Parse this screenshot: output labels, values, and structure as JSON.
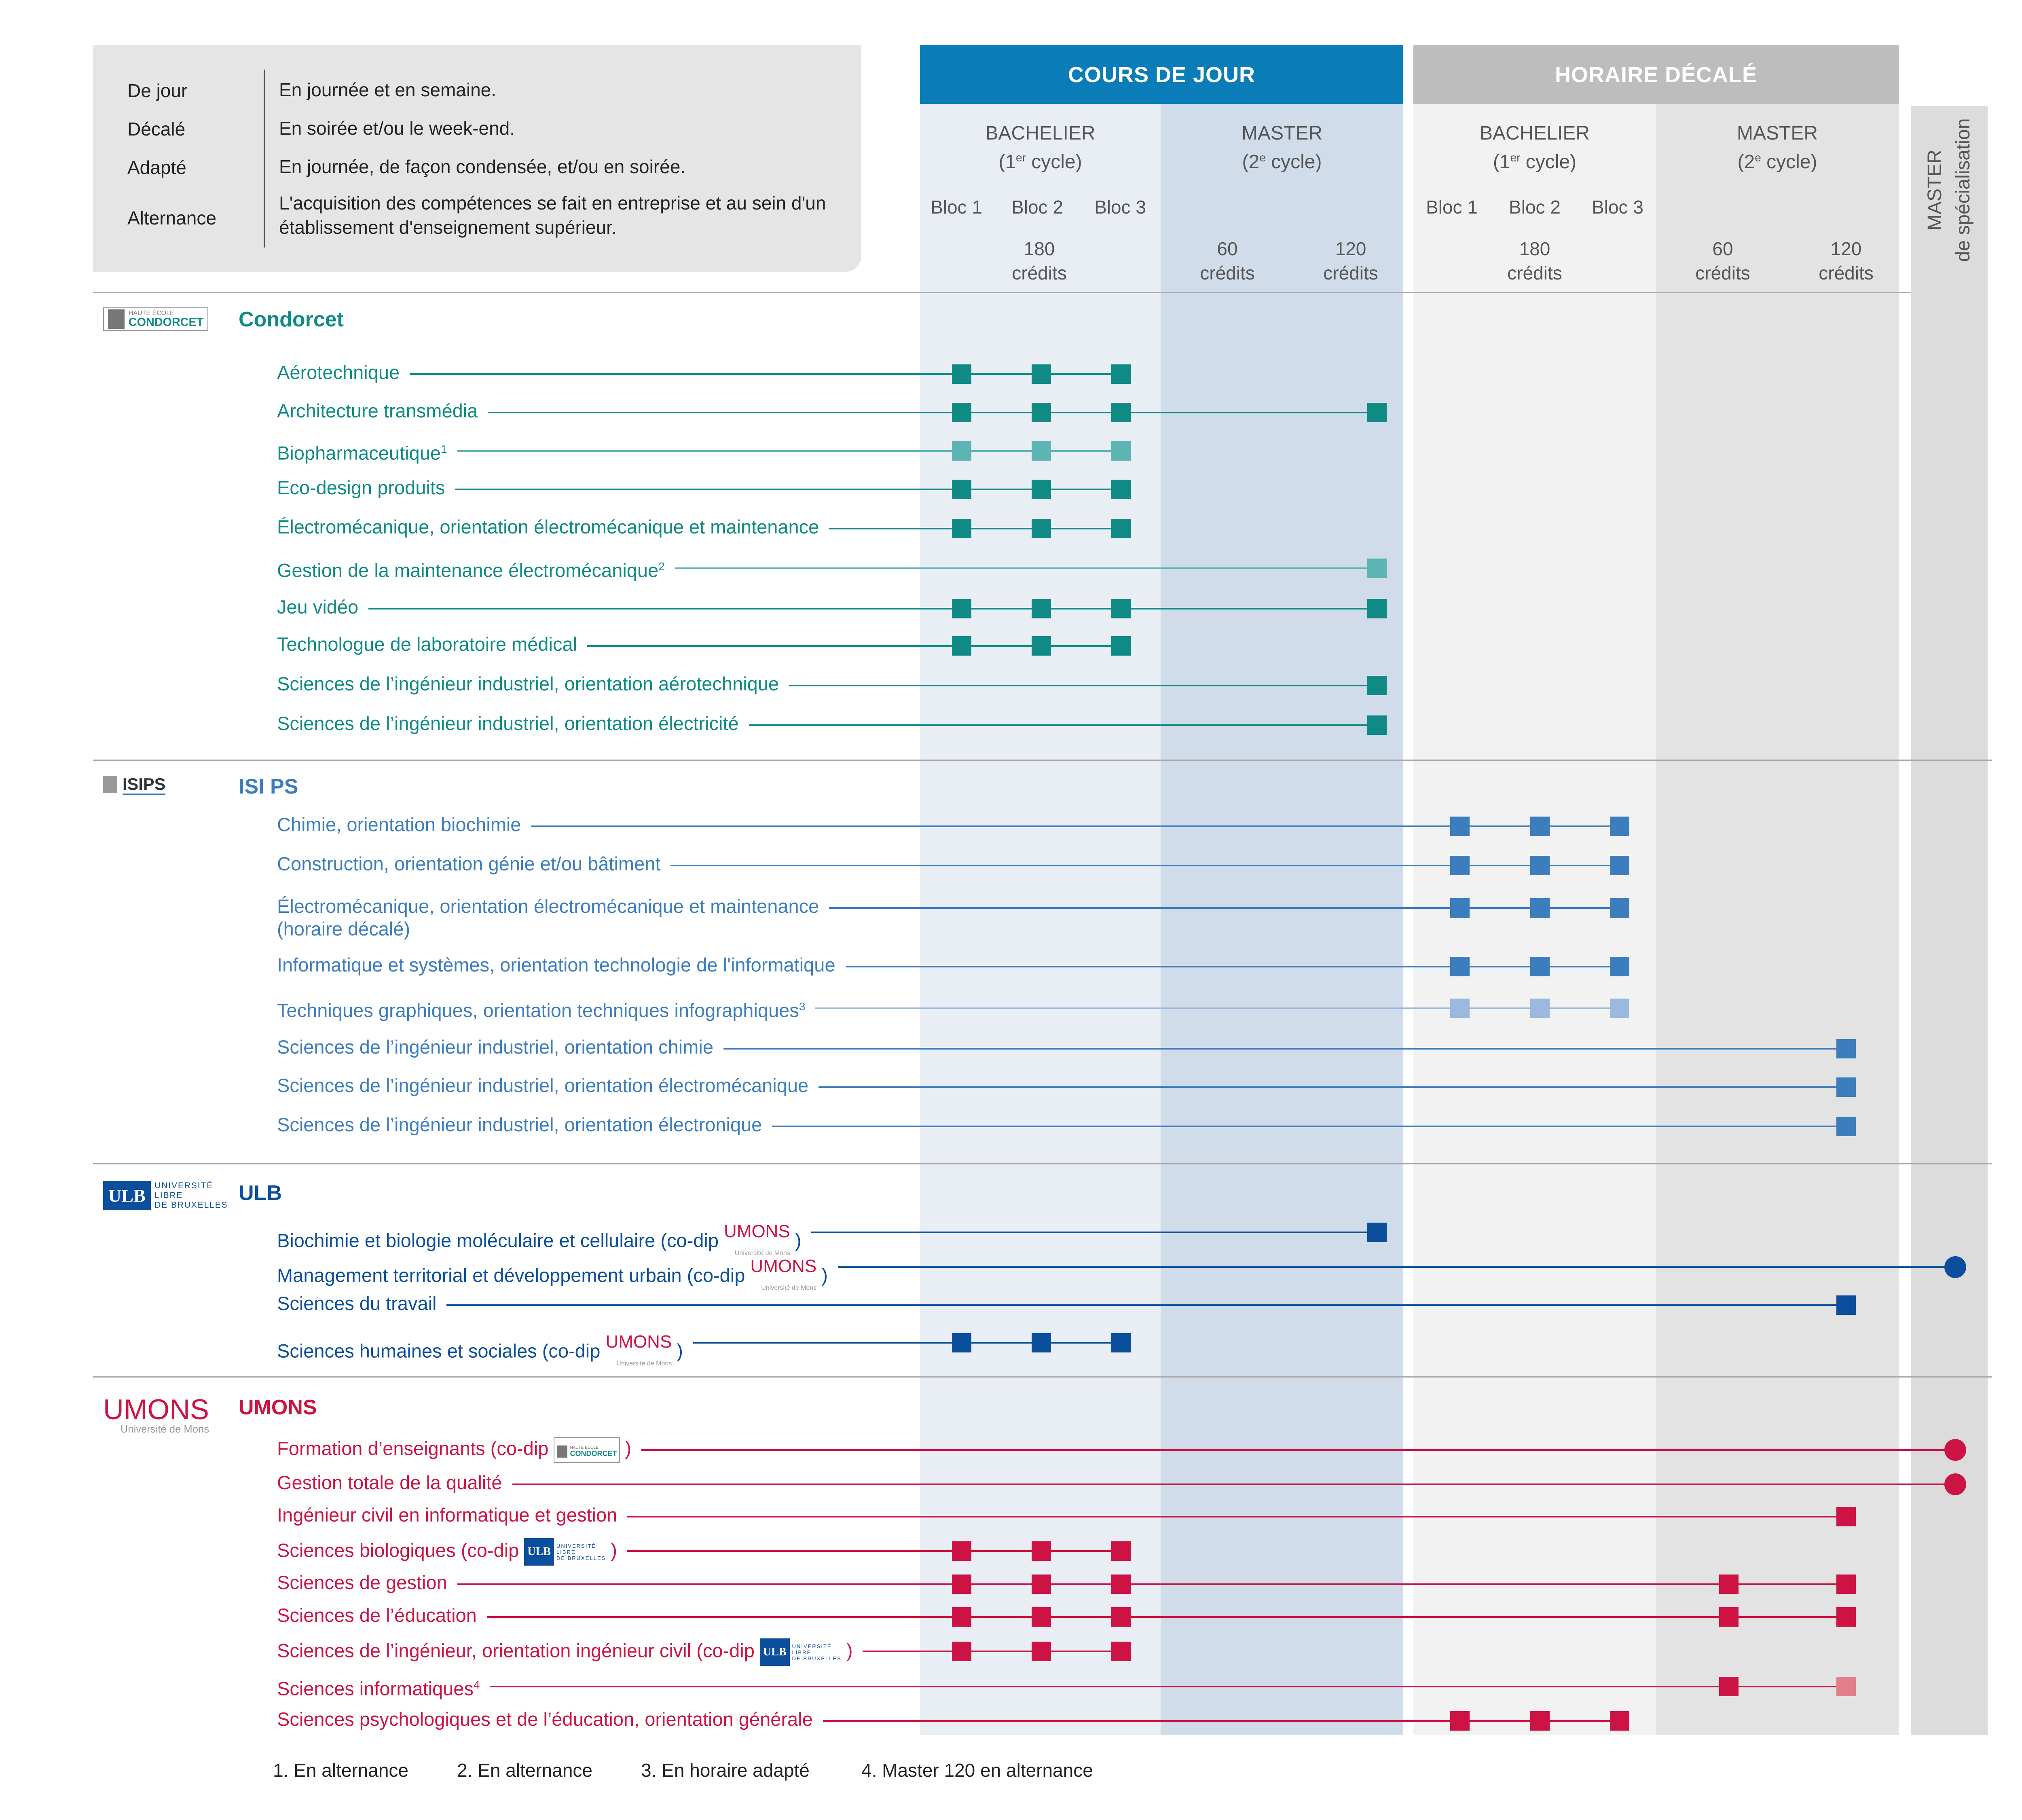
{
  "legend": [
    {
      "key": "De jour",
      "def": "En journée et en semaine."
    },
    {
      "key": "Décalé",
      "def": "En soirée et/ou le week-end."
    },
    {
      "key": "Adapté",
      "def": "En journée, de façon condensée, et/ou en soirée."
    },
    {
      "key": "Alternance",
      "def": "L'acquisition des compétences se fait en entreprise et au sein d'un établissement d'enseignement supérieur."
    }
  ],
  "headers": {
    "jour": "COURS DE JOUR",
    "decale": "HORAIRE DÉCALÉ",
    "bachelier": "BACHELIER",
    "bachelier_cycle_a": "(1",
    "bachelier_cycle_sup": "er",
    "bachelier_cycle_b": " cycle)",
    "master": "MASTER",
    "master_cycle_a": "(2",
    "master_cycle_sup": "e",
    "master_cycle_b": " cycle)",
    "bloc1": "Bloc 1",
    "bloc2": "Bloc 2",
    "bloc3": "Bloc 3",
    "credits180": "180",
    "credits60": "60",
    "credits120": "120",
    "credits_word": "crédits",
    "spec_line1": "MASTER",
    "spec_line2": "de spécialisation"
  },
  "colors": {
    "jour": "#0a7db8",
    "decale": "#bdbdbd",
    "band_light": "#e9eef5",
    "band_mid": "#d1dcea",
    "band_grey1": "#f2f2f2",
    "band_grey2": "#e3e3e3",
    "condorcet": "#0f8a84",
    "condorcet_light": "#5cb5b3",
    "isips": "#3c7dbd",
    "isips_light": "#9bb8de",
    "ulb": "#0b4e9b",
    "umons": "#cc1344",
    "umons_light": "#e27e87"
  },
  "sections": [
    {
      "key": "condorcet",
      "name": "Condorcet",
      "logo": "Condorcet",
      "rows": [
        {
          "label": "Aérotechnique",
          "sup": "",
          "marks": [
            "j1",
            "j2",
            "j3"
          ],
          "end": "",
          "light": false
        },
        {
          "label": "Architecture transmédia",
          "sup": "",
          "marks": [
            "j1",
            "j2",
            "j3",
            "jm120"
          ],
          "end": "",
          "light": false
        },
        {
          "label": "Biopharmaceutique",
          "sup": "1",
          "marks": [
            "j1",
            "j2",
            "j3"
          ],
          "end": "",
          "light": true
        },
        {
          "label": "Eco-design produits",
          "sup": "",
          "marks": [
            "j1",
            "j2",
            "j3"
          ],
          "end": "",
          "light": false
        },
        {
          "label": "Électromécanique, orientation électromécanique et maintenance",
          "sup": "",
          "marks": [
            "j1",
            "j2",
            "j3"
          ],
          "end": "",
          "light": false
        },
        {
          "label": "Gestion de la maintenance électromécanique",
          "sup": "2",
          "marks": [
            "jm120"
          ],
          "end": "",
          "light": true
        },
        {
          "label": "Jeu vidéo",
          "sup": "",
          "marks": [
            "j1",
            "j2",
            "j3",
            "jm120"
          ],
          "end": "",
          "light": false
        },
        {
          "label": "Technologue de laboratoire médical",
          "sup": "",
          "marks": [
            "j1",
            "j2",
            "j3"
          ],
          "end": "",
          "light": false
        },
        {
          "label": "Sciences de l’ingénieur industriel, orientation aérotechnique",
          "sup": "",
          "marks": [
            "jm120"
          ],
          "end": "",
          "light": false
        },
        {
          "label": "Sciences de l’ingénieur industriel, orientation électricité",
          "sup": "",
          "marks": [
            "jm120"
          ],
          "end": "",
          "light": false
        }
      ]
    },
    {
      "key": "isips",
      "name": "ISI PS",
      "logo": "ISIPS",
      "rows": [
        {
          "label": "Chimie, orientation biochimie",
          "sup": "",
          "marks": [
            "d1",
            "d2",
            "d3"
          ],
          "light": false
        },
        {
          "label": "Construction, orientation génie et/ou bâtiment",
          "sup": "",
          "marks": [
            "d1",
            "d2",
            "d3"
          ],
          "light": false
        },
        {
          "label": "Électromécanique, orientation électromécanique et maintenance",
          "label2": "(horaire décalé)",
          "sup": "",
          "marks": [
            "d1",
            "d2",
            "d3"
          ],
          "light": false
        },
        {
          "label": "Informatique et systèmes, orientation technologie de l'informatique",
          "sup": "",
          "marks": [
            "d1",
            "d2",
            "d3"
          ],
          "light": false
        },
        {
          "label": "Techniques graphiques, orientation techniques infographiques",
          "sup": "3",
          "marks": [
            "d1",
            "d2",
            "d3"
          ],
          "light": true
        },
        {
          "label": "Sciences de l’ingénieur industriel, orientation chimie",
          "sup": "",
          "marks": [
            "dm120"
          ],
          "light": false
        },
        {
          "label": "Sciences de l’ingénieur industriel, orientation électromécanique",
          "sup": "",
          "marks": [
            "dm120"
          ],
          "light": false
        },
        {
          "label": "Sciences de l’ingénieur industriel, orientation électronique",
          "sup": "",
          "marks": [
            "dm120"
          ],
          "light": false
        }
      ]
    },
    {
      "key": "ulb",
      "name": "ULB",
      "logo": "ULB",
      "rows": [
        {
          "label": "Biochimie et biologie moléculaire et cellulaire (co-dip ",
          "codip": "UMONS",
          "sup": "",
          "marks": [
            "jm120"
          ],
          "light": false
        },
        {
          "label": "Management territorial et développement urbain (co-dip ",
          "codip": "UMONS",
          "sup": "",
          "marks": [
            "spec"
          ],
          "light": false
        },
        {
          "label": "Sciences du travail",
          "sup": "",
          "marks": [
            "dm120"
          ],
          "light": false
        },
        {
          "label": "Sciences humaines et sociales (co-dip ",
          "codip": "UMONS",
          "sup": "",
          "marks": [
            "j1",
            "j2",
            "j3"
          ],
          "light": false
        }
      ]
    },
    {
      "key": "umons",
      "name": "UMONS",
      "logo": "UMONS",
      "rows": [
        {
          "label": "Formation d’enseignants (co-dip ",
          "codip": "Condorcet",
          "sup": "",
          "marks": [
            "spec"
          ],
          "light": false
        },
        {
          "label": "Gestion totale de la qualité",
          "sup": "",
          "marks": [
            "spec"
          ],
          "light": false
        },
        {
          "label": "Ingénieur civil en informatique et gestion",
          "sup": "",
          "marks": [
            "dm120"
          ],
          "light": false
        },
        {
          "label": "Sciences biologiques (co-dip ",
          "codip": "ULB",
          "sup": "",
          "marks": [
            "j1",
            "j2",
            "j3"
          ],
          "light": false
        },
        {
          "label": "Sciences de gestion",
          "sup": "",
          "marks": [
            "j1",
            "j2",
            "j3",
            "dm60",
            "dm120"
          ],
          "light": false
        },
        {
          "label": "Sciences de l’éducation",
          "sup": "",
          "marks": [
            "j1",
            "j2",
            "j3",
            "dm60",
            "dm120"
          ],
          "light": false
        },
        {
          "label": "Sciences de l’ingénieur, orientation ingénieur civil (co-dip ",
          "codip": "ULB",
          "sup": "",
          "marks": [
            "j1",
            "j2",
            "j3"
          ],
          "light": false
        },
        {
          "label": "Sciences informatiques",
          "sup": "4",
          "marks": [
            "dm60",
            "dm120L"
          ],
          "light": false
        },
        {
          "label": "Sciences psychologiques et de l’éducation, orientation générale",
          "sup": "",
          "marks": [
            "d1",
            "d2",
            "d3"
          ],
          "light": false
        }
      ]
    }
  ],
  "logos": {
    "condorcet_small": "HAUTE ÉCOLE",
    "condorcet_main": "CONDORCET",
    "isips": "ISIPS",
    "ulb_badge": "ULB",
    "ulb_text1": "UNIVERSITÉ",
    "ulb_text2": "LIBRE",
    "ulb_text3": "DE BRUXELLES",
    "umons_main": "UMONS",
    "umons_sub": "Université de Mons"
  },
  "footnotes": [
    "1. En alternance",
    "2. En alternance",
    "3. En horaire adapté",
    "4. Master 120 en alternance"
  ]
}
